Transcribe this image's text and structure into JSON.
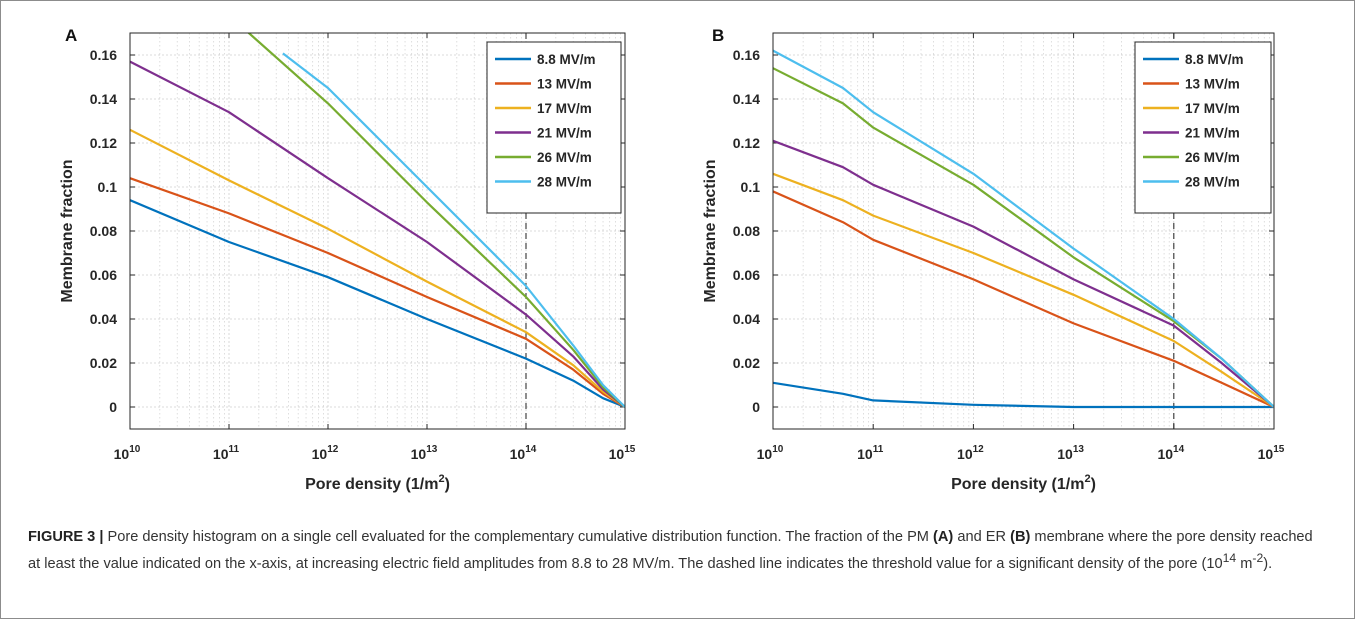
{
  "figure": {
    "caption_label": "FIGURE 3 |",
    "caption_segments": [
      " Pore density histogram on a single cell evaluated for the complementary cumulative distribution function. The fraction of the PM ",
      "(A)",
      " and ER ",
      "(B)",
      " membrane where the pore density reached at least the value indicated on the x-axis, at increasing electric field amplitudes from 8.8 to 28 MV/m. The dashed line indicates the threshold value for a significant density of the pore (10",
      "14",
      " m",
      "-2",
      ")."
    ]
  },
  "colors": [
    "#0072bd",
    "#d95319",
    "#edb120",
    "#7e2f8e",
    "#77ac30",
    "#4dbeee"
  ],
  "chart_data": [
    {
      "type": "line",
      "panel_label": "A",
      "xlabel": "Pore density (1/m",
      "xlabel_sup": "2",
      "xlabel_end": ")",
      "ylabel": "Membrane fraction",
      "x_scale": "log",
      "xlim": [
        10000000000.0,
        1000000000000000.0
      ],
      "ylim": [
        -0.01,
        0.17
      ],
      "x_ticks": [
        {
          "base": "10",
          "exp": "10"
        },
        {
          "base": "10",
          "exp": "11"
        },
        {
          "base": "10",
          "exp": "12"
        },
        {
          "base": "10",
          "exp": "13"
        },
        {
          "base": "10",
          "exp": "14"
        },
        {
          "base": "10",
          "exp": "15"
        }
      ],
      "y_ticks": [
        "0",
        "0.02",
        "0.04",
        "0.06",
        "0.08",
        "0.1",
        "0.12",
        "0.14",
        "0.16"
      ],
      "threshold_x": 100000000000000.0,
      "grid": true,
      "legend_position": "top-right",
      "x": [
        10000000000.0,
        100000000000.0,
        1000000000000.0,
        10000000000000.0,
        100000000000000.0,
        300000000000000.0,
        600000000000000.0,
        1000000000000000.0
      ],
      "series": [
        {
          "name": "8.8 MV/m",
          "values": [
            0.094,
            0.075,
            0.059,
            0.04,
            0.022,
            0.012,
            0.004,
            0
          ]
        },
        {
          "name": "13 MV/m",
          "values": [
            0.104,
            0.088,
            0.07,
            0.05,
            0.031,
            0.017,
            0.006,
            0
          ]
        },
        {
          "name": "17 MV/m",
          "values": [
            0.126,
            0.103,
            0.081,
            0.057,
            0.034,
            0.019,
            0.007,
            0
          ]
        },
        {
          "name": "21 MV/m",
          "values": [
            0.157,
            0.134,
            0.104,
            0.075,
            0.042,
            0.023,
            0.008,
            0
          ]
        },
        {
          "name": "26 MV/m",
          "values": [
            null,
            0.178,
            0.138,
            0.093,
            0.05,
            0.026,
            0.009,
            0
          ]
        },
        {
          "name": "28 MV/m",
          "values": [
            null,
            null,
            0.145,
            0.1,
            0.055,
            0.028,
            0.01,
            0
          ]
        }
      ]
    },
    {
      "type": "line",
      "panel_label": "B",
      "xlabel": "Pore density (1/m",
      "xlabel_sup": "2",
      "xlabel_end": ")",
      "ylabel": "Membrane fraction",
      "x_scale": "log",
      "xlim": [
        10000000000.0,
        1000000000000000.0
      ],
      "ylim": [
        -0.01,
        0.17
      ],
      "x_ticks": [
        {
          "base": "10",
          "exp": "10"
        },
        {
          "base": "10",
          "exp": "11"
        },
        {
          "base": "10",
          "exp": "12"
        },
        {
          "base": "10",
          "exp": "13"
        },
        {
          "base": "10",
          "exp": "14"
        },
        {
          "base": "10",
          "exp": "15"
        }
      ],
      "y_ticks": [
        "0",
        "0.02",
        "0.04",
        "0.06",
        "0.08",
        "0.1",
        "0.12",
        "0.14",
        "0.16"
      ],
      "threshold_x": 100000000000000.0,
      "grid": true,
      "legend_position": "top-right",
      "x": [
        10000000000.0,
        50000000000.0,
        100000000000.0,
        1000000000000.0,
        10000000000000.0,
        100000000000000.0,
        300000000000000.0,
        1000000000000000.0
      ],
      "series": [
        {
          "name": "8.8 MV/m",
          "values": [
            0.011,
            0.006,
            0.003,
            0.001,
            0,
            0,
            0,
            0
          ]
        },
        {
          "name": "13 MV/m",
          "values": [
            0.098,
            0.084,
            0.076,
            0.058,
            0.038,
            0.021,
            0.011,
            0
          ]
        },
        {
          "name": "17 MV/m",
          "values": [
            0.106,
            0.094,
            0.087,
            0.07,
            0.051,
            0.03,
            0.016,
            0
          ]
        },
        {
          "name": "21 MV/m",
          "values": [
            0.121,
            0.109,
            0.101,
            0.082,
            0.058,
            0.037,
            0.02,
            0
          ]
        },
        {
          "name": "26 MV/m",
          "values": [
            0.154,
            0.138,
            0.127,
            0.101,
            0.068,
            0.039,
            0.022,
            0
          ]
        },
        {
          "name": "28 MV/m",
          "values": [
            0.162,
            0.145,
            0.134,
            0.106,
            0.072,
            0.04,
            0.022,
            0
          ]
        }
      ]
    }
  ]
}
